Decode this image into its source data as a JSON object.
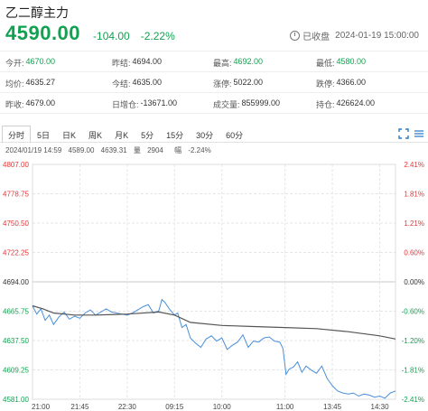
{
  "header": {
    "title": "乙二醇主力",
    "price": "4590.00",
    "change": "-104.00",
    "change_pct": "-2.22%",
    "status": "已收盘",
    "datetime": "2024-01-19 15:00:00"
  },
  "stats": [
    [
      {
        "label": "今开:",
        "value": "4670.00",
        "color": "green"
      },
      {
        "label": "昨结:",
        "value": "4694.00",
        "color": ""
      },
      {
        "label": "最高:",
        "value": "4692.00",
        "color": "green"
      },
      {
        "label": "最低:",
        "value": "4580.00",
        "color": "green"
      }
    ],
    [
      {
        "label": "均价:",
        "value": "4635.27",
        "color": ""
      },
      {
        "label": "今结:",
        "value": "4635.00",
        "color": ""
      },
      {
        "label": "涨停:",
        "value": "5022.00",
        "color": ""
      },
      {
        "label": "跌停:",
        "value": "4366.00",
        "color": ""
      }
    ],
    [
      {
        "label": "昨收:",
        "value": "4679.00",
        "color": ""
      },
      {
        "label": "日增仓:",
        "value": "-13671.00",
        "color": ""
      },
      {
        "label": "成交量:",
        "value": "855999.00",
        "color": ""
      },
      {
        "label": "持仓:",
        "value": "426624.00",
        "color": ""
      }
    ]
  ],
  "tabs": [
    "分时",
    "5日",
    "日K",
    "周K",
    "月K",
    "5分",
    "15分",
    "30分",
    "60分"
  ],
  "active_tab": 0,
  "info_bar": {
    "date": "2024/01/19 14:59",
    "p1": "4589.00",
    "p2": "4639.31",
    "vol_label": "量",
    "vol": "2904",
    "amp_label": "幅",
    "amp": "-2.24%"
  },
  "colors": {
    "up": "#e3383a",
    "down": "#12a150",
    "price_line": "#4a8fd9",
    "avg_line": "#555555",
    "grid": "#e6e6e6"
  },
  "chart_data": {
    "type": "line",
    "title": "",
    "xlabel": "",
    "ylabel": "",
    "ylim": [
      4581.0,
      4807.0
    ],
    "baseline": 4694.0,
    "left_ticks": [
      "4807.00",
      "4778.75",
      "4750.50",
      "4722.25",
      "4694.00",
      "4665.75",
      "4637.50",
      "4609.25",
      "4581.00"
    ],
    "right_ticks": [
      "2.41%",
      "1.81%",
      "1.21%",
      "0.60%",
      "0.00%",
      "-0.60%",
      "-1.20%",
      "-1.81%",
      "-2.41%"
    ],
    "x_ticks": [
      "21:00",
      "21:45",
      "22:30",
      "09:15",
      "10:00",
      "11:00",
      "13:45",
      "14:30"
    ],
    "x_tick_positions": [
      0,
      45,
      90,
      135,
      180,
      240,
      285,
      330
    ],
    "x_max": 345,
    "series": [
      {
        "x": [
          0,
          4,
          8,
          12,
          16,
          20,
          25,
          30,
          35,
          40,
          45,
          50,
          55,
          60,
          65,
          70,
          75,
          80,
          85,
          90,
          95,
          100,
          105,
          110,
          115,
          120,
          123,
          126,
          130,
          135,
          138,
          142,
          146,
          150,
          155,
          160,
          165,
          170,
          175,
          180,
          185,
          190,
          195,
          200,
          205,
          210,
          215,
          220,
          225,
          230,
          235,
          238,
          241,
          244,
          248,
          252,
          256,
          260,
          265,
          270,
          275,
          280,
          285,
          290,
          295,
          300,
          305,
          310,
          315,
          320,
          325,
          330,
          335,
          340,
          345
        ],
        "values": [
          4671,
          4663,
          4668,
          4657,
          4662,
          4653,
          4660,
          4665,
          4658,
          4661,
          4659,
          4664,
          4667,
          4662,
          4665,
          4668,
          4665,
          4664,
          4663,
          4662,
          4664,
          4667,
          4670,
          4672,
          4664,
          4666,
          4677,
          4674,
          4668,
          4662,
          4664,
          4650,
          4653,
          4640,
          4635,
          4631,
          4639,
          4642,
          4637,
          4640,
          4629,
          4633,
          4636,
          4643,
          4631,
          4637,
          4636,
          4640,
          4641,
          4637,
          4636,
          4630,
          4605,
          4610,
          4612,
          4617,
          4607,
          4613,
          4609,
          4606,
          4613,
          4601,
          4594,
          4589,
          4587,
          4586,
          4587,
          4584,
          4586,
          4585,
          4583,
          4584,
          4582,
          4587,
          4589
        ]
      },
      {
        "x": [
          0,
          10,
          20,
          40,
          60,
          90,
          120,
          135,
          150,
          180,
          210,
          240,
          270,
          300,
          330,
          345
        ],
        "values": [
          4671,
          4668,
          4664,
          4662,
          4662,
          4663,
          4665,
          4662,
          4655,
          4652,
          4651,
          4650,
          4649,
          4646,
          4642,
          4639
        ]
      }
    ]
  }
}
